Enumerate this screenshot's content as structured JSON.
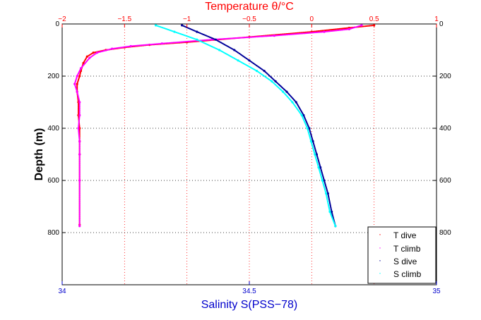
{
  "chart_data": {
    "type": "scatter",
    "title": "Temperature θ/°C",
    "xlabel": "Salinity S(PSS−78)",
    "ylabel": "Depth (m)",
    "x_top": {
      "label": "Temperature θ/°C",
      "lim": [
        -2,
        1
      ],
      "ticks": [
        -2,
        -1.5,
        -1,
        -0.5,
        0,
        0.5,
        1
      ],
      "tick_labels": [
        "−2",
        "−1.5",
        "−1",
        "−0.5",
        "0",
        "0.5",
        "1"
      ],
      "color": "#ff0000"
    },
    "x_bottom": {
      "label": "Salinity S(PSS−78)",
      "lim": [
        34,
        35
      ],
      "ticks": [
        34,
        34.5,
        35
      ],
      "tick_labels": [
        "34",
        "34.5",
        "35"
      ],
      "color": "#0000cc"
    },
    "y": {
      "label": "Depth (m)",
      "lim": [
        0,
        1000
      ],
      "reversed": true,
      "ticks": [
        0,
        200,
        400,
        600,
        800
      ],
      "tick_labels": [
        "0",
        "200",
        "400",
        "600",
        "800"
      ]
    },
    "grid": true,
    "legend_position": "bottom-right",
    "series": [
      {
        "name": "T dive",
        "axis": "top",
        "color": "#ff0000",
        "x": [
          0.5,
          0.3,
          0.0,
          -0.5,
          -1.0,
          -1.3,
          -1.5,
          -1.65,
          -1.75,
          -1.8,
          -1.83,
          -1.85,
          -1.86,
          -1.88,
          -1.88,
          -1.87,
          -1.87,
          -1.86,
          -1.86,
          -1.86,
          -1.86,
          -1.86
        ],
        "y": [
          5,
          15,
          30,
          50,
          70,
          80,
          90,
          100,
          110,
          125,
          150,
          180,
          200,
          230,
          260,
          300,
          350,
          400,
          450,
          500,
          600,
          770
        ]
      },
      {
        "name": "T climb",
        "axis": "top",
        "color": "#ff00ff",
        "x": [
          0.4,
          0.3,
          0.1,
          -0.3,
          -0.8,
          -1.2,
          -1.45,
          -1.6,
          -1.72,
          -1.78,
          -1.85,
          -1.88,
          -1.9,
          -1.88,
          -1.86,
          -1.86,
          -1.87,
          -1.86,
          -1.86,
          -1.86,
          -1.86
        ],
        "y": [
          5,
          20,
          30,
          45,
          60,
          75,
          85,
          95,
          110,
          130,
          170,
          200,
          230,
          260,
          300,
          350,
          400,
          450,
          500,
          600,
          775
        ]
      },
      {
        "name": "S dive",
        "axis": "bottom",
        "color": "#000099",
        "x": [
          34.32,
          34.36,
          34.41,
          34.46,
          34.5,
          34.54,
          34.57,
          34.6,
          34.625,
          34.645,
          34.66,
          34.67,
          34.68,
          34.69,
          34.7,
          34.71,
          34.72,
          34.73
        ],
        "y": [
          5,
          30,
          60,
          100,
          140,
          180,
          220,
          260,
          300,
          350,
          400,
          450,
          500,
          550,
          600,
          650,
          720,
          775
        ]
      },
      {
        "name": "S climb",
        "axis": "bottom",
        "color": "#00ffff",
        "x": [
          34.25,
          34.3,
          34.36,
          34.42,
          34.47,
          34.52,
          34.56,
          34.59,
          34.615,
          34.64,
          34.655,
          34.665,
          34.675,
          34.685,
          34.695,
          34.705,
          34.715,
          34.73
        ],
        "y": [
          5,
          30,
          60,
          100,
          140,
          180,
          220,
          260,
          300,
          350,
          400,
          450,
          500,
          550,
          600,
          650,
          720,
          775
        ]
      }
    ]
  }
}
